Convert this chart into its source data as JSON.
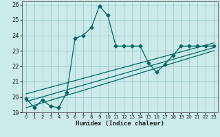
{
  "xlabel": "Humidex (Indice chaleur)",
  "bg_color": "#cceaea",
  "grid_color": "#99cccc",
  "line_color": "#006666",
  "xlim": [
    -0.5,
    23.5
  ],
  "ylim": [
    19,
    26.2
  ],
  "yticks": [
    19,
    20,
    21,
    22,
    23,
    24,
    25,
    26
  ],
  "xticks": [
    0,
    1,
    2,
    3,
    4,
    5,
    6,
    7,
    8,
    9,
    10,
    11,
    12,
    13,
    14,
    15,
    16,
    17,
    18,
    19,
    20,
    21,
    22,
    23
  ],
  "series1_x": [
    0,
    1,
    2,
    3,
    4,
    5,
    6,
    7,
    8,
    9,
    10,
    11,
    12,
    13,
    14,
    15,
    16,
    17,
    18,
    19,
    20,
    21,
    22,
    23
  ],
  "series1_y": [
    19.9,
    19.3,
    19.8,
    19.4,
    19.3,
    20.3,
    23.8,
    24.0,
    24.5,
    25.9,
    25.3,
    23.3,
    23.3,
    23.3,
    23.3,
    22.2,
    21.6,
    22.1,
    22.7,
    23.3,
    23.3,
    23.3,
    23.3,
    23.3
  ],
  "trend1_x": [
    0,
    23
  ],
  "trend1_y": [
    19.3,
    23.0
  ],
  "trend2_x": [
    0,
    23
  ],
  "trend2_y": [
    19.7,
    23.2
  ],
  "trend3_x": [
    0,
    23
  ],
  "trend3_y": [
    20.2,
    23.5
  ]
}
